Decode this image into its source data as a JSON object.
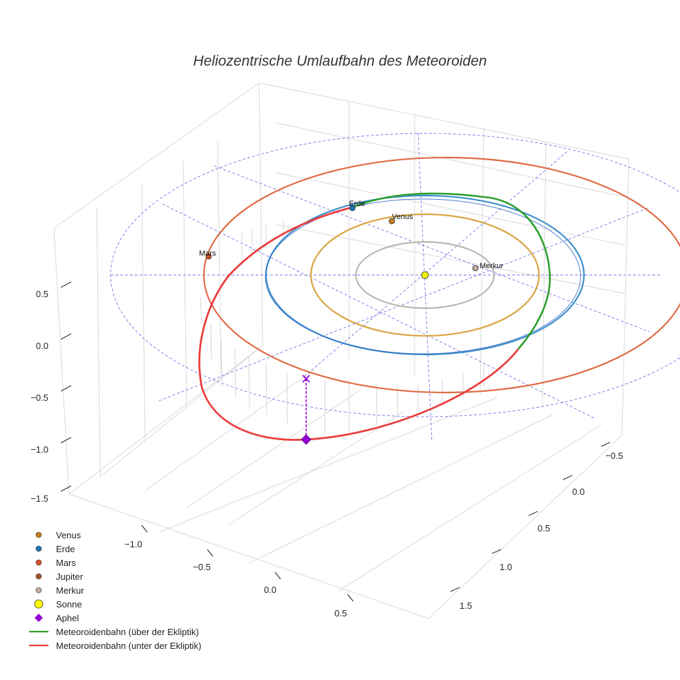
{
  "chart_data": {
    "type": "3d-line",
    "title": "Heliozentrische Umlaufbahn des Meteoroiden",
    "colors": {
      "grid": "#d9d9d9",
      "ecliptic": "#5a5ae6",
      "meteoroid_above": "#2ca02c",
      "meteoroid_below": "#e8403f",
      "aphel": "#9400d3"
    },
    "z_ticks": [
      "0.5",
      "0.0",
      "−0.5",
      "−1.0",
      "−1.5"
    ],
    "x_ticks": [
      "−1.0",
      "−0.5",
      "0.0",
      "0.5"
    ],
    "y_ticks": [
      "−0.5",
      "0.0",
      "0.5",
      "1.0",
      "1.5"
    ],
    "orbits": [
      {
        "name": "Merkur",
        "color": "#bdb6b0"
      },
      {
        "name": "Venus",
        "color": "#d9a441"
      },
      {
        "name": "Erde",
        "color": "#3d8fcc"
      },
      {
        "name": "Mars",
        "color": "#e06b45"
      }
    ],
    "planets": [
      {
        "name": "Venus",
        "label": "Venus",
        "color": "#c77e18",
        "size": 8
      },
      {
        "name": "Erde",
        "label": "Erde",
        "color": "#1f77b4",
        "size": 8
      },
      {
        "name": "Mars",
        "label": "Mars",
        "color": "#d4502a",
        "size": 8
      },
      {
        "name": "Merkur",
        "label": "Merkur",
        "color": "#bdaaa0",
        "size": 8
      },
      {
        "name": "Sonne",
        "label": "",
        "color": "#f2f20a",
        "size": 10
      }
    ],
    "legend": [
      {
        "label": "Venus",
        "kind": "dot",
        "color": "#c77e18"
      },
      {
        "label": "Erde",
        "kind": "dot",
        "color": "#1f77b4"
      },
      {
        "label": "Mars",
        "kind": "dot",
        "color": "#d4502a"
      },
      {
        "label": "Jupiter",
        "kind": "dot",
        "color": "#a0522d"
      },
      {
        "label": "Merkur",
        "kind": "dot",
        "color": "#bdaaa0"
      },
      {
        "label": "Sonne",
        "kind": "bigdot",
        "color": "#ffff00"
      },
      {
        "label": "Aphel",
        "kind": "diamond",
        "color": "#9400d3"
      },
      {
        "label": "Meteoroidenbahn (über der Ekliptik)",
        "kind": "line",
        "color": "#2ca02c"
      },
      {
        "label": "Meteoroidenbahn (unter der Ekliptik)",
        "kind": "line",
        "color": "#e8403f"
      }
    ]
  }
}
